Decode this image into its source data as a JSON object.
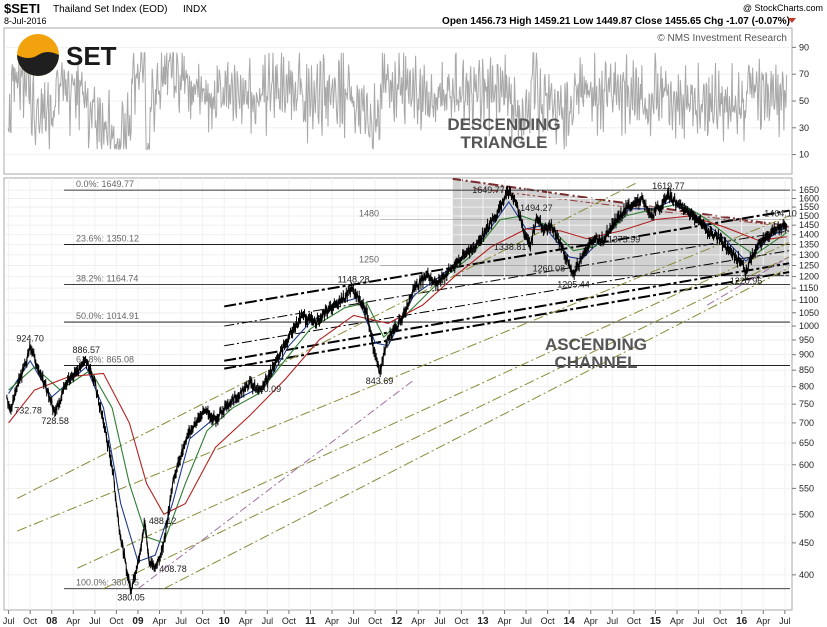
{
  "header": {
    "symbol": "$SETI",
    "name": "Thailand Set Index (EOD)",
    "exchange": "INDX",
    "copyright": "@ StockCharts.com",
    "date": "8-Jul-2016",
    "ohlc_text": "Open 1456.73  High 1459.21  Low 1449.87  Close 1455.65  Chg -1.07 (-0.07%)",
    "attribution": "© NMS Investment Research",
    "logo_text": "SET"
  },
  "annotations": {
    "descending_1": "DESCENDING",
    "descending_2": "TRIANGLE",
    "ascending_1": "ASCENDING",
    "ascending_2": "CHANNEL"
  },
  "colors": {
    "price": "#000000",
    "ma_short": "#1e3a8a",
    "ma_mid": "#2e7d32",
    "ma_long": "#b22222",
    "fib_line": "#000000",
    "triangle_fill": "#c9c9c9",
    "osc": "#a8a8a8",
    "channel_olive": "#8a8a3a",
    "logo_orange": "#f2a20c"
  },
  "chart_data": {
    "type": "line",
    "title": "$SETI Thailand Set Index (EOD)",
    "y_axis": {
      "scale": "log",
      "ylim": [
        370,
        1700
      ],
      "ticks": [
        400,
        450,
        500,
        550,
        600,
        650,
        700,
        750,
        800,
        850,
        900,
        950,
        1000,
        1050,
        1100,
        1150,
        1200,
        1250,
        1300,
        1350,
        1400,
        1450,
        1500,
        1550,
        1600,
        1650
      ]
    },
    "x_axis": {
      "ticks": [
        {
          "label": "Jul",
          "t": 2007.5
        },
        {
          "label": "Oct",
          "t": 2007.75
        },
        {
          "label": "08",
          "t": 2008.0
        },
        {
          "label": "Apr",
          "t": 2008.25
        },
        {
          "label": "Jul",
          "t": 2008.5
        },
        {
          "label": "Oct",
          "t": 2008.75
        },
        {
          "label": "09",
          "t": 2009.0
        },
        {
          "label": "Apr",
          "t": 2009.25
        },
        {
          "label": "Jul",
          "t": 2009.5
        },
        {
          "label": "Oct",
          "t": 2009.75
        },
        {
          "label": "10",
          "t": 2010.0
        },
        {
          "label": "Apr",
          "t": 2010.25
        },
        {
          "label": "Jul",
          "t": 2010.5
        },
        {
          "label": "Oct",
          "t": 2010.75
        },
        {
          "label": "11",
          "t": 2011.0
        },
        {
          "label": "Apr",
          "t": 2011.25
        },
        {
          "label": "Jul",
          "t": 2011.5
        },
        {
          "label": "Oct",
          "t": 2011.75
        },
        {
          "label": "12",
          "t": 2012.0
        },
        {
          "label": "Apr",
          "t": 2012.25
        },
        {
          "label": "Jul",
          "t": 2012.5
        },
        {
          "label": "Oct",
          "t": 2012.75
        },
        {
          "label": "13",
          "t": 2013.0
        },
        {
          "label": "Apr",
          "t": 2013.25
        },
        {
          "label": "Jul",
          "t": 2013.5
        },
        {
          "label": "Oct",
          "t": 2013.75
        },
        {
          "label": "14",
          "t": 2014.0
        },
        {
          "label": "Apr",
          "t": 2014.25
        },
        {
          "label": "Jul",
          "t": 2014.5
        },
        {
          "label": "Oct",
          "t": 2014.75
        },
        {
          "label": "15",
          "t": 2015.0
        },
        {
          "label": "Apr",
          "t": 2015.25
        },
        {
          "label": "Jul",
          "t": 2015.5
        },
        {
          "label": "Oct",
          "t": 2015.75
        },
        {
          "label": "16",
          "t": 2016.0
        },
        {
          "label": "Apr",
          "t": 2016.25
        },
        {
          "label": "Jul",
          "t": 2016.5
        }
      ]
    },
    "price_series": [
      [
        2007.48,
        770
      ],
      [
        2007.52,
        732.78
      ],
      [
        2007.6,
        800
      ],
      [
        2007.68,
        860
      ],
      [
        2007.75,
        924.7
      ],
      [
        2007.85,
        850
      ],
      [
        2007.95,
        790
      ],
      [
        2008.04,
        728.58
      ],
      [
        2008.15,
        800
      ],
      [
        2008.3,
        850
      ],
      [
        2008.4,
        886.57
      ],
      [
        2008.5,
        810
      ],
      [
        2008.6,
        700
      ],
      [
        2008.7,
        600
      ],
      [
        2008.78,
        480
      ],
      [
        2008.85,
        420
      ],
      [
        2008.92,
        380.05
      ],
      [
        2009.02,
        430
      ],
      [
        2009.08,
        488.12
      ],
      [
        2009.13,
        420
      ],
      [
        2009.2,
        408.78
      ],
      [
        2009.3,
        450
      ],
      [
        2009.4,
        560
      ],
      [
        2009.5,
        620
      ],
      [
        2009.6,
        680
      ],
      [
        2009.75,
        730
      ],
      [
        2009.9,
        710
      ],
      [
        2010.0,
        740
      ],
      [
        2010.15,
        770
      ],
      [
        2010.3,
        810
      ],
      [
        2010.4,
        790
      ],
      [
        2010.5,
        820.09
      ],
      [
        2010.6,
        880
      ],
      [
        2010.75,
        960
      ],
      [
        2010.9,
        1040
      ],
      [
        2011.05,
        1010
      ],
      [
        2011.2,
        1060
      ],
      [
        2011.35,
        1100
      ],
      [
        2011.5,
        1148.28
      ],
      [
        2011.65,
        1050
      ],
      [
        2011.75,
        900
      ],
      [
        2011.8,
        843.69
      ],
      [
        2011.9,
        960
      ],
      [
        2012.05,
        1020
      ],
      [
        2012.2,
        1150
      ],
      [
        2012.35,
        1210
      ],
      [
        2012.45,
        1170
      ],
      [
        2012.6,
        1220
      ],
      [
        2012.75,
        1290
      ],
      [
        2012.9,
        1340
      ],
      [
        2013.0,
        1400
      ],
      [
        2013.15,
        1500
      ],
      [
        2013.3,
        1649.77
      ],
      [
        2013.4,
        1560
      ],
      [
        2013.48,
        1400
      ],
      [
        2013.55,
        1338.81
      ],
      [
        2013.62,
        1494.27
      ],
      [
        2013.7,
        1420
      ],
      [
        2013.8,
        1450
      ],
      [
        2013.9,
        1350
      ],
      [
        2014.0,
        1260.08
      ],
      [
        2014.05,
        1205.44
      ],
      [
        2014.15,
        1300
      ],
      [
        2014.3,
        1380
      ],
      [
        2014.4,
        1375.99
      ],
      [
        2014.55,
        1480
      ],
      [
        2014.7,
        1560
      ],
      [
        2014.85,
        1590
      ],
      [
        2014.95,
        1500
      ],
      [
        2015.1,
        1580
      ],
      [
        2015.15,
        1619.77
      ],
      [
        2015.3,
        1550
      ],
      [
        2015.45,
        1500
      ],
      [
        2015.6,
        1420
      ],
      [
        2015.75,
        1380
      ],
      [
        2015.85,
        1320
      ],
      [
        2016.0,
        1260
      ],
      [
        2016.05,
        1220.96
      ],
      [
        2016.15,
        1320
      ],
      [
        2016.3,
        1400
      ],
      [
        2016.45,
        1440
      ],
      [
        2016.52,
        1455.65
      ]
    ],
    "moving_averages": [
      {
        "color_key": "ma_short",
        "values": [
          [
            2007.5,
            780
          ],
          [
            2007.75,
            880
          ],
          [
            2008.0,
            770
          ],
          [
            2008.4,
            860
          ],
          [
            2008.6,
            740
          ],
          [
            2008.8,
            520
          ],
          [
            2009.0,
            420
          ],
          [
            2009.2,
            430
          ],
          [
            2009.4,
            520
          ],
          [
            2009.6,
            660
          ],
          [
            2009.9,
            715
          ],
          [
            2010.2,
            770
          ],
          [
            2010.5,
            810
          ],
          [
            2010.75,
            930
          ],
          [
            2011.0,
            1015
          ],
          [
            2011.35,
            1090
          ],
          [
            2011.55,
            1110
          ],
          [
            2011.75,
            940
          ],
          [
            2011.9,
            930
          ],
          [
            2012.2,
            1120
          ],
          [
            2012.5,
            1200
          ],
          [
            2012.8,
            1300
          ],
          [
            2013.0,
            1380
          ],
          [
            2013.3,
            1580
          ],
          [
            2013.5,
            1430
          ],
          [
            2013.7,
            1450
          ],
          [
            2014.0,
            1290
          ],
          [
            2014.15,
            1280
          ],
          [
            2014.4,
            1390
          ],
          [
            2014.7,
            1540
          ],
          [
            2015.0,
            1540
          ],
          [
            2015.2,
            1590
          ],
          [
            2015.5,
            1490
          ],
          [
            2015.8,
            1380
          ],
          [
            2016.05,
            1270
          ],
          [
            2016.3,
            1380
          ],
          [
            2016.52,
            1440
          ]
        ]
      },
      {
        "color_key": "ma_mid",
        "values": [
          [
            2007.5,
            790
          ],
          [
            2007.8,
            860
          ],
          [
            2008.1,
            790
          ],
          [
            2008.45,
            850
          ],
          [
            2008.7,
            740
          ],
          [
            2008.9,
            560
          ],
          [
            2009.1,
            460
          ],
          [
            2009.3,
            450
          ],
          [
            2009.55,
            560
          ],
          [
            2009.8,
            680
          ],
          [
            2010.1,
            740
          ],
          [
            2010.4,
            780
          ],
          [
            2010.7,
            880
          ],
          [
            2011.0,
            990
          ],
          [
            2011.4,
            1070
          ],
          [
            2011.65,
            1090
          ],
          [
            2011.85,
            960
          ],
          [
            2012.1,
            1040
          ],
          [
            2012.5,
            1180
          ],
          [
            2012.85,
            1290
          ],
          [
            2013.2,
            1480
          ],
          [
            2013.45,
            1500
          ],
          [
            2013.75,
            1450
          ],
          [
            2014.05,
            1320
          ],
          [
            2014.3,
            1340
          ],
          [
            2014.65,
            1500
          ],
          [
            2015.0,
            1540
          ],
          [
            2015.3,
            1570
          ],
          [
            2015.6,
            1480
          ],
          [
            2015.9,
            1370
          ],
          [
            2016.15,
            1300
          ],
          [
            2016.52,
            1410
          ]
        ]
      },
      {
        "color_key": "ma_long",
        "values": [
          [
            2007.5,
            700
          ],
          [
            2007.8,
            790
          ],
          [
            2008.2,
            830
          ],
          [
            2008.6,
            840
          ],
          [
            2008.9,
            700
          ],
          [
            2009.1,
            560
          ],
          [
            2009.3,
            500
          ],
          [
            2009.55,
            520
          ],
          [
            2009.9,
            640
          ],
          [
            2010.3,
            720
          ],
          [
            2010.7,
            820
          ],
          [
            2011.1,
            950
          ],
          [
            2011.5,
            1040
          ],
          [
            2011.9,
            1010
          ],
          [
            2012.3,
            1080
          ],
          [
            2012.7,
            1210
          ],
          [
            2013.1,
            1340
          ],
          [
            2013.5,
            1430
          ],
          [
            2013.9,
            1420
          ],
          [
            2014.2,
            1380
          ],
          [
            2014.6,
            1420
          ],
          [
            2015.0,
            1480
          ],
          [
            2015.4,
            1500
          ],
          [
            2015.8,
            1440
          ],
          [
            2016.2,
            1370
          ],
          [
            2016.52,
            1390
          ]
        ]
      }
    ],
    "fib_levels": [
      {
        "label": "0.0%: 1649.77",
        "value": 1649.77
      },
      {
        "label": "23.6%: 1350.12",
        "value": 1350.12
      },
      {
        "label": "38.2%: 1164.74",
        "value": 1164.74
      },
      {
        "label": "50.0%: 1014.91",
        "value": 1014.91
      },
      {
        "label": "61.8%: 865.08",
        "value": 865.08
      },
      {
        "label": "100.0%: 380.05",
        "value": 380.05
      }
    ],
    "level_labels": [
      {
        "text": "1480",
        "value": 1480
      },
      {
        "text": "1250",
        "value": 1250
      }
    ],
    "price_labels": [
      {
        "text": "924.70",
        "t": 2007.75,
        "value": 924.7,
        "pos": "above"
      },
      {
        "text": "886.57",
        "t": 2008.4,
        "value": 886.57,
        "pos": "above"
      },
      {
        "text": "732.78",
        "t": 2007.52,
        "value": 732.78,
        "pos": "right"
      },
      {
        "text": "728.58",
        "t": 2008.04,
        "value": 728.58,
        "pos": "below"
      },
      {
        "text": "488.12",
        "t": 2009.08,
        "value": 488.12,
        "pos": "right"
      },
      {
        "text": "408.78",
        "t": 2009.2,
        "value": 408.78,
        "pos": "right"
      },
      {
        "text": "380.05",
        "t": 2008.92,
        "value": 380.05,
        "pos": "below"
      },
      {
        "text": "820.09",
        "t": 2010.5,
        "value": 820.09,
        "pos": "below"
      },
      {
        "text": "1148.28",
        "t": 2011.5,
        "value": 1148.28,
        "pos": "above"
      },
      {
        "text": "843.69",
        "t": 2011.8,
        "value": 843.69,
        "pos": "below"
      },
      {
        "text": "1649.77",
        "t": 2013.3,
        "value": 1649.77,
        "pos": "left"
      },
      {
        "text": "1494.27",
        "t": 2013.62,
        "value": 1494.27,
        "pos": "above"
      },
      {
        "text": "1338.81",
        "t": 2013.55,
        "value": 1338.81,
        "pos": "left"
      },
      {
        "text": "1260.08",
        "t": 2014.0,
        "value": 1260.08,
        "pos": "below-left"
      },
      {
        "text": "1205.44",
        "t": 2014.05,
        "value": 1205.44,
        "pos": "below"
      },
      {
        "text": "1375.99",
        "t": 2014.4,
        "value": 1375.99,
        "pos": "right"
      },
      {
        "text": "1619.77",
        "t": 2015.15,
        "value": 1619.77,
        "pos": "above"
      },
      {
        "text": "1220.96",
        "t": 2016.05,
        "value": 1220.96,
        "pos": "below"
      },
      {
        "text": "1464.10",
        "t": 2016.45,
        "value": 1464.1,
        "pos": "above"
      }
    ],
    "triangle": {
      "region": {
        "t_start": 2012.65,
        "t_end": 2016.55,
        "top_start": 1720,
        "top_end": 1440,
        "bottom": 1200
      },
      "upper_trend": [
        [
          2012.65,
          1720
        ],
        [
          2016.55,
          1445
        ]
      ],
      "upper_trend2": [
        [
          2012.9,
          1660
        ],
        [
          2016.55,
          1440
        ]
      ],
      "base": [
        [
          2012.65,
          1202
        ],
        [
          2016.55,
          1202
        ]
      ]
    },
    "trendlines": [
      {
        "style": "dashdot-bold",
        "points": [
          [
            2010.0,
            1075
          ],
          [
            2016.55,
            1530
          ]
        ]
      },
      {
        "style": "dashdot-bold",
        "points": [
          [
            2010.0,
            880
          ],
          [
            2016.55,
            1260
          ]
        ]
      },
      {
        "style": "dashdot-bold",
        "points": [
          [
            2010.0,
            855
          ],
          [
            2016.55,
            1220
          ]
        ]
      },
      {
        "style": "dashdot",
        "points": [
          [
            2010.0,
            1000
          ],
          [
            2016.55,
            1420
          ]
        ]
      },
      {
        "style": "dashdot",
        "points": [
          [
            2010.0,
            930
          ],
          [
            2016.55,
            1320
          ]
        ]
      },
      {
        "style": "dashdot-olive",
        "points": [
          [
            2007.6,
            530
          ],
          [
            2014.8,
            1700
          ]
        ]
      },
      {
        "style": "dashdot-olive",
        "points": [
          [
            2007.6,
            470
          ],
          [
            2016.55,
            1500
          ]
        ]
      },
      {
        "style": "dashdot-olive",
        "points": [
          [
            2008.3,
            410
          ],
          [
            2016.55,
            1360
          ]
        ]
      },
      {
        "style": "dashdot-olive",
        "points": [
          [
            2008.6,
            380
          ],
          [
            2016.55,
            1290
          ]
        ]
      },
      {
        "style": "dashdot-olive",
        "points": [
          [
            2009.3,
            380
          ],
          [
            2016.55,
            1240
          ]
        ]
      },
      {
        "style": "dashdot-purple",
        "points": [
          [
            2015.6,
            1080
          ],
          [
            2016.55,
            1290
          ]
        ]
      },
      {
        "style": "dashdot-purple",
        "points": [
          [
            2009.0,
            380
          ],
          [
            2012.2,
            820
          ]
        ]
      }
    ],
    "oscillator": {
      "ylim": [
        0,
        100
      ],
      "ticks": [
        10,
        30,
        50,
        70,
        90
      ]
    }
  }
}
